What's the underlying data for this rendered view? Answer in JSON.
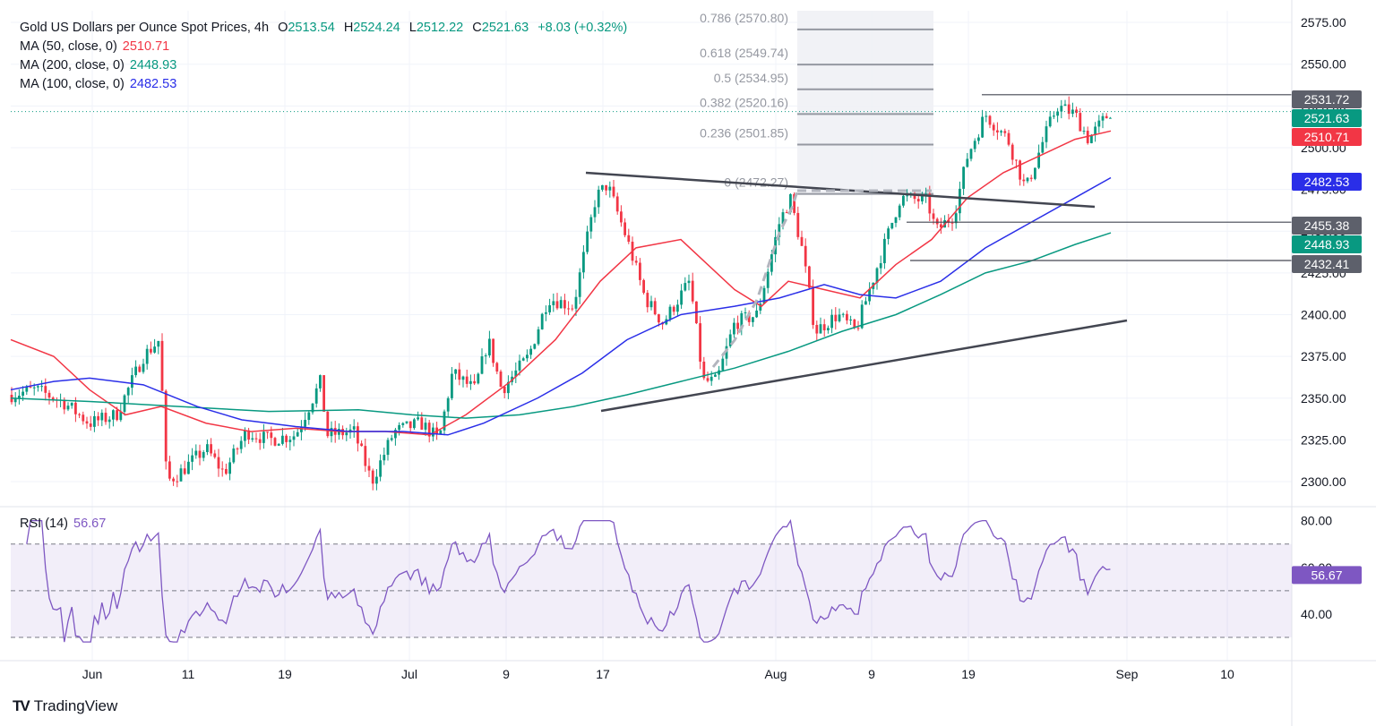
{
  "header": {
    "symbol": "Gold US Dollars per Ounce Spot Prices, 4h",
    "open_label": "O",
    "open": "2513.54",
    "high_label": "H",
    "high": "2524.24",
    "low_label": "L",
    "low": "2512.22",
    "close_label": "C",
    "close": "2521.63",
    "change": "+8.03 (+0.32%)"
  },
  "indicators": [
    {
      "label": "MA (50, close, 0)",
      "value": "2510.71",
      "color": "#f23645"
    },
    {
      "label": "MA (200, close, 0)",
      "value": "2448.93",
      "color": "#089981"
    },
    {
      "label": "MA (100, close, 0)",
      "value": "2482.53",
      "color": "#2a2ee8"
    }
  ],
  "rsi": {
    "label": "RSI (14)",
    "value": "56.67",
    "color": "#7e57c2",
    "ticks": [
      "80.00",
      "60.00",
      "40.00"
    ],
    "levels": [
      70,
      50,
      30
    ]
  },
  "branding": {
    "name": "TradingView"
  },
  "chart_data": {
    "type": "candlestick",
    "title": "Gold US Dollars per Ounce Spot Prices, 4h",
    "x_ticks": [
      "Jun",
      "11",
      "19",
      "Jul",
      "9",
      "17",
      "Aug",
      "9",
      "19",
      "Sep",
      "10"
    ],
    "y_ticks": [
      "2575.00",
      "2550.00",
      "2525.00",
      "2500.00",
      "2475.00",
      "2450.00",
      "2425.00",
      "2400.00",
      "2375.00",
      "2350.00",
      "2325.00",
      "2300.00"
    ],
    "ylim": [
      2285,
      2582
    ],
    "price_labels": [
      {
        "value": "2531.72",
        "color": "#5d606b"
      },
      {
        "value": "2521.63",
        "color": "#089981"
      },
      {
        "value": "2510.71",
        "color": "#f23645"
      },
      {
        "value": "2482.53",
        "color": "#2a2ee8"
      },
      {
        "value": "2455.38",
        "color": "#5d606b"
      },
      {
        "value": "2448.93",
        "color": "#089981"
      },
      {
        "value": "2432.41",
        "color": "#5d606b"
      }
    ],
    "fibonacci": [
      {
        "label": "0.786 (2570.80)",
        "value": 2570.8
      },
      {
        "label": "0.618 (2549.74)",
        "value": 2549.74
      },
      {
        "label": "0.5 (2534.95)",
        "value": 2534.95
      },
      {
        "label": "0.382 (2520.16)",
        "value": 2520.16
      },
      {
        "label": "0.236 (2501.85)",
        "value": 2501.85
      },
      {
        "label": "0 (2472.27)",
        "value": 2472.27
      }
    ],
    "series": [
      {
        "name": "MA (50, close, 0)",
        "color": "#f23645"
      },
      {
        "name": "MA (200, close, 0)",
        "color": "#089981"
      },
      {
        "name": "MA (100, close, 0)",
        "color": "#2a2ee8"
      }
    ],
    "colors": {
      "up": "#089981",
      "down": "#f23645",
      "trendline": "#434651",
      "fib": "#9598a1"
    }
  }
}
